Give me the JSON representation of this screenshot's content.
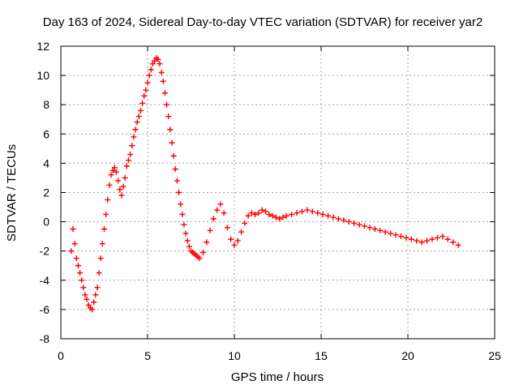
{
  "chart_data": {
    "type": "scatter",
    "title": "Day 163 of 2024, Sidereal Day-to-day VTEC variation (SDTVAR) for receiver yar2",
    "xlabel": "GPS time / hours",
    "ylabel": "SDTVAR / TECUs",
    "xlim": [
      0,
      25
    ],
    "ylim": [
      -8,
      12
    ],
    "xticks": [
      0,
      5,
      10,
      15,
      20,
      25
    ],
    "yticks": [
      -8,
      -6,
      -4,
      -2,
      0,
      2,
      4,
      6,
      8,
      10,
      12
    ],
    "grid": true,
    "marker": "+",
    "color": "#ff0000",
    "series": [
      {
        "name": "SDTVAR",
        "x": [
          0.6,
          0.7,
          0.8,
          0.9,
          1.0,
          1.1,
          1.2,
          1.3,
          1.4,
          1.5,
          1.6,
          1.7,
          1.8,
          1.9,
          2.0,
          2.1,
          2.2,
          2.3,
          2.4,
          2.5,
          2.6,
          2.7,
          2.8,
          2.9,
          3.0,
          3.1,
          3.2,
          3.3,
          3.4,
          3.5,
          3.6,
          3.7,
          3.8,
          3.9,
          4.0,
          4.1,
          4.2,
          4.3,
          4.4,
          4.5,
          4.6,
          4.7,
          4.8,
          4.9,
          5.0,
          5.1,
          5.2,
          5.3,
          5.4,
          5.5,
          5.6,
          5.7,
          5.8,
          5.9,
          6.0,
          6.1,
          6.2,
          6.3,
          6.4,
          6.5,
          6.6,
          6.7,
          6.8,
          6.9,
          7.0,
          7.1,
          7.2,
          7.3,
          7.4,
          7.5,
          7.6,
          7.7,
          7.8,
          7.9,
          8.0,
          8.2,
          8.4,
          8.6,
          8.8,
          9.0,
          9.2,
          9.4,
          9.6,
          9.8,
          10.0,
          10.2,
          10.4,
          10.6,
          10.8,
          11.0,
          11.2,
          11.4,
          11.6,
          11.8,
          12.0,
          12.2,
          12.4,
          12.6,
          12.8,
          13.0,
          13.3,
          13.6,
          13.9,
          14.2,
          14.5,
          14.8,
          15.1,
          15.4,
          15.7,
          16.0,
          16.3,
          16.6,
          16.9,
          17.2,
          17.5,
          17.8,
          18.1,
          18.4,
          18.7,
          19.0,
          19.3,
          19.6,
          19.9,
          20.2,
          20.5,
          20.8,
          21.1,
          21.4,
          21.7,
          22.0,
          22.3,
          22.6,
          22.9
        ],
        "y": [
          -2.0,
          -0.5,
          -1.5,
          -2.5,
          -3.0,
          -3.5,
          -4.0,
          -4.5,
          -5.0,
          -5.3,
          -5.7,
          -5.9,
          -6.0,
          -5.5,
          -5.0,
          -4.5,
          -3.5,
          -2.5,
          -1.5,
          -0.5,
          0.5,
          1.5,
          2.5,
          3.2,
          3.5,
          3.7,
          3.4,
          2.8,
          2.2,
          1.8,
          2.4,
          3.0,
          3.8,
          4.2,
          4.6,
          5.2,
          5.8,
          6.3,
          6.8,
          7.2,
          7.6,
          8.1,
          8.6,
          9.0,
          9.5,
          10.0,
          10.4,
          10.8,
          11.0,
          11.2,
          11.1,
          10.8,
          10.2,
          9.6,
          8.8,
          8.0,
          7.2,
          6.3,
          5.4,
          4.5,
          3.6,
          2.8,
          2.0,
          1.2,
          0.5,
          -0.2,
          -0.8,
          -1.3,
          -1.7,
          -2.0,
          -2.1,
          -2.2,
          -2.3,
          -2.4,
          -2.5,
          -2.1,
          -1.4,
          -0.6,
          0.2,
          0.8,
          1.2,
          0.6,
          -0.4,
          -1.2,
          -1.6,
          -1.3,
          -0.7,
          -0.1,
          0.4,
          0.6,
          0.5,
          0.6,
          0.8,
          0.7,
          0.5,
          0.4,
          0.3,
          0.2,
          0.3,
          0.4,
          0.5,
          0.6,
          0.7,
          0.8,
          0.7,
          0.6,
          0.5,
          0.4,
          0.3,
          0.2,
          0.1,
          0.0,
          -0.1,
          -0.2,
          -0.3,
          -0.4,
          -0.5,
          -0.6,
          -0.7,
          -0.8,
          -0.9,
          -1.0,
          -1.1,
          -1.2,
          -1.3,
          -1.4,
          -1.3,
          -1.2,
          -1.1,
          -1.0,
          -1.2,
          -1.4,
          -1.6
        ]
      }
    ]
  }
}
